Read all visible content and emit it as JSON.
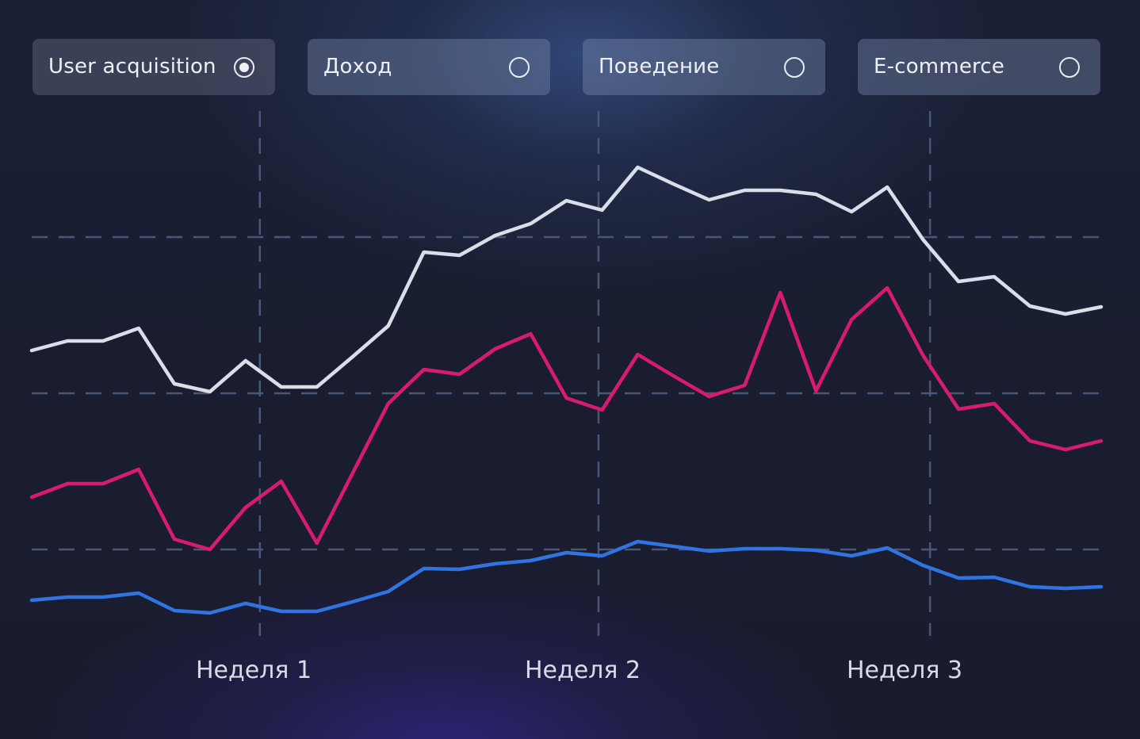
{
  "tabs": [
    {
      "label": "User acquisition",
      "selected": true
    },
    {
      "label": "Доход",
      "selected": false
    },
    {
      "label": "Поведение",
      "selected": false
    },
    {
      "label": "E-commerce",
      "selected": false
    }
  ],
  "colors": {
    "series_white": "#d9dee9",
    "series_pink": "#d81b72",
    "series_blue": "#2f74e0",
    "grid": "#4a5678"
  },
  "chart_data": {
    "type": "line",
    "x": [
      0,
      1,
      2,
      3,
      4,
      5,
      6,
      7,
      8,
      9,
      10,
      11,
      12,
      13,
      14,
      15,
      16,
      17,
      18,
      19,
      20,
      21,
      22,
      23,
      24,
      25,
      26,
      27,
      28,
      29,
      30
    ],
    "week_labels": [
      {
        "label": "Неделя 1",
        "x": 6.4
      },
      {
        "label": "Неделя 2",
        "x": 15.9
      },
      {
        "label": "Неделя 3",
        "x": 25.2
      }
    ],
    "series": [
      {
        "color_key": "series_white",
        "values": [
          442,
          430,
          430,
          414,
          484,
          494,
          455,
          488,
          488,
          450,
          411,
          318,
          322,
          297,
          282,
          253,
          265,
          211,
          232,
          252,
          240,
          240,
          245,
          267,
          236,
          302,
          355,
          349,
          386,
          396,
          387
        ]
      },
      {
        "color_key": "series_pink",
        "values": [
          627,
          610,
          610,
          592,
          680,
          693,
          640,
          607,
          685,
          597,
          509,
          466,
          472,
          440,
          421,
          502,
          517,
          447,
          474,
          500,
          486,
          369,
          493,
          403,
          363,
          448,
          516,
          509,
          556,
          567,
          556
        ]
      },
      {
        "color_key": "series_blue",
        "values": [
          757,
          753,
          753,
          748,
          770,
          773,
          761,
          771,
          771,
          759,
          746,
          717,
          718,
          711,
          707,
          697,
          701,
          683,
          689,
          695,
          692,
          692,
          694,
          701,
          691,
          713,
          729,
          728,
          740,
          742,
          740
        ]
      }
    ],
    "ylim": [
      200,
      800
    ],
    "grid": true
  }
}
